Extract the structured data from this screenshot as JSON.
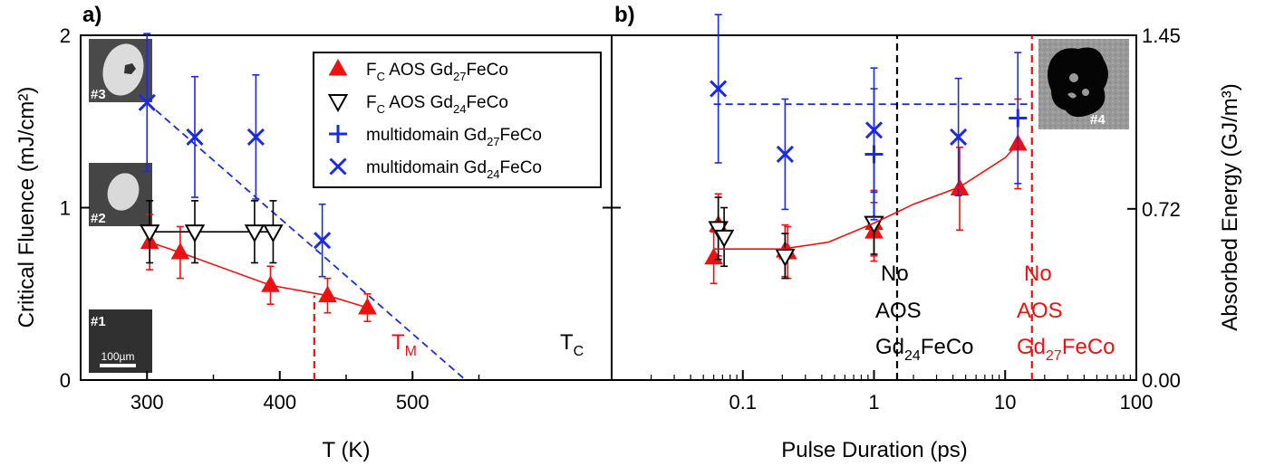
{
  "colors": {
    "red": "#ee1111",
    "blue": "#1a2be0",
    "black": "#000000",
    "insetGray": "#9a9a9a",
    "insetDark": "#2b2b2b"
  },
  "panels": {
    "a": {
      "label": "a)",
      "xlabel": "T (K)",
      "ylabel": "Critical Fluence (mJ/cm²)"
    },
    "b": {
      "label": "b)",
      "xlabel": "Pulse Duration (ps)",
      "ylabel2": "Absorbed Energy (GJ/m³)"
    }
  },
  "insets": {
    "i1": "#1",
    "i2": "#2",
    "i3": "#3",
    "i4": "#4",
    "scalebar": "100µm"
  },
  "legend": [
    {
      "pre": "F",
      "sub1": "C",
      "mid": " AOS Gd",
      "sub2": "27",
      "post": "FeCo",
      "marker": "tri-up",
      "color": "red"
    },
    {
      "pre": "F",
      "sub1": "C",
      "mid": " AOS Gd",
      "sub2": "24",
      "post": "FeCo",
      "marker": "tri-down",
      "color": "black"
    },
    {
      "pre": "",
      "sub1": "",
      "mid": "multidomain Gd",
      "sub2": "27",
      "post": "FeCo",
      "marker": "plus",
      "color": "blue"
    },
    {
      "pre": "",
      "sub1": "",
      "mid": "multidomain Gd",
      "sub2": "24",
      "post": "FeCo",
      "marker": "cross",
      "color": "blue"
    }
  ],
  "annotations": {
    "TM": {
      "main": "T",
      "sub": "M"
    },
    "TC": {
      "main": "T",
      "sub": "C"
    },
    "noAOS24": {
      "l1": "No",
      "l2": "AOS",
      "l3a": "Gd",
      "l3sub": "24",
      "l3b": "FeCo"
    },
    "noAOS27": {
      "l1": "No",
      "l2": "AOS",
      "l3a": "Gd",
      "l3sub": "27",
      "l3b": "FeCo"
    }
  },
  "chart_data": [
    {
      "type": "scatter",
      "panel": "a",
      "xlabel": "T (K)",
      "ylabel": "Critical Fluence (mJ/cm²)",
      "xlim": [
        250,
        650
      ],
      "ylim": [
        0,
        2
      ],
      "xticks": [
        300,
        400,
        500
      ],
      "yticks": [
        0,
        1,
        2
      ],
      "series": [
        {
          "name": "F_C AOS Gd27FeCo",
          "marker": "tri-up",
          "color": "red",
          "connected": true,
          "x": [
            302,
            325,
            393,
            436,
            466
          ],
          "y": [
            0.8,
            0.74,
            0.55,
            0.49,
            0.42
          ],
          "err": [
            0.16,
            0.15,
            0.11,
            0.1,
            0.08
          ]
        },
        {
          "name": "F_C AOS Gd24FeCo",
          "marker": "tri-down",
          "color": "black",
          "connected": true,
          "x": [
            302,
            336,
            381,
            395
          ],
          "y": [
            0.86,
            0.86,
            0.86,
            0.86
          ],
          "err": [
            0.18,
            0.18,
            0.18,
            0.18
          ]
        },
        {
          "name": "multidomain Gd24FeCo",
          "marker": "cross",
          "color": "blue",
          "connected": false,
          "x": [
            300,
            336,
            382,
            432
          ],
          "y": [
            1.61,
            1.41,
            1.41,
            0.81
          ],
          "err": [
            0.4,
            0.35,
            0.36,
            0.21
          ]
        }
      ],
      "guides": [
        {
          "type": "line",
          "style": "dashed",
          "color": "blue",
          "x": [
            300,
            540
          ],
          "y": [
            1.61,
            0.0
          ]
        },
        {
          "type": "vline",
          "style": "dashed",
          "color": "red",
          "x": 426,
          "y": [
            0,
            0.49
          ]
        }
      ]
    },
    {
      "type": "scatter",
      "panel": "b",
      "xscale": "log",
      "xlabel": "Pulse Duration (ps)",
      "ylabel": "Absorbed Energy (GJ/m³)",
      "xlim": [
        0.01,
        100
      ],
      "ylim": [
        0,
        2
      ],
      "xticks": [
        0.1,
        1,
        10,
        100
      ],
      "y2lim": [
        0,
        1.45
      ],
      "y2ticks": [
        0.0,
        0.72,
        1.45
      ],
      "series": [
        {
          "name": "F_C AOS Gd27FeCo",
          "marker": "tri-up",
          "color": "red",
          "x": [
            0.06,
            0.065,
            0.21,
            0.22,
            1.0,
            1.0,
            4.5,
            12.5
          ],
          "y": [
            0.71,
            0.9,
            0.75,
            0.74,
            0.86,
            0.91,
            1.11,
            1.37
          ],
          "err": [
            0.15,
            0.18,
            0.15,
            0.15,
            0.17,
            0.19,
            0.24,
            0.26
          ]
        },
        {
          "name": "F_C AOS Gd24FeCo",
          "marker": "tri-down",
          "color": "black",
          "x": [
            0.065,
            0.072,
            0.21,
            1.0
          ],
          "y": [
            0.88,
            0.83,
            0.72,
            0.91
          ],
          "err": [
            0.18,
            0.17,
            0.13,
            0.18
          ]
        },
        {
          "name": "multidomain Gd27FeCo",
          "marker": "plus",
          "color": "blue",
          "x": [
            1.0,
            12.5
          ],
          "y": [
            1.31,
            1.52
          ],
          "err": [
            0.38,
            0.38
          ]
        },
        {
          "name": "multidomain Gd24FeCo",
          "marker": "cross",
          "color": "blue",
          "x": [
            0.065,
            0.21,
            1.0,
            4.4
          ],
          "y": [
            1.69,
            1.31,
            1.45,
            1.41
          ],
          "err": [
            0.43,
            0.32,
            0.36,
            0.34
          ]
        },
        {
          "name": "fit",
          "marker": "none",
          "color": "red",
          "connected": true,
          "x": [
            0.06,
            0.1,
            0.2,
            0.45,
            1.0,
            2.0,
            4.5,
            10.0,
            12.5
          ],
          "y": [
            0.76,
            0.76,
            0.76,
            0.8,
            0.91,
            1.02,
            1.12,
            1.29,
            1.37
          ]
        }
      ],
      "guides": [
        {
          "type": "hline",
          "style": "dashed",
          "color": "blue",
          "x": [
            0.06,
            15
          ],
          "y": 1.6
        },
        {
          "type": "vline",
          "style": "dashed",
          "color": "black",
          "x": 1.5,
          "y": [
            0,
            2
          ]
        },
        {
          "type": "vline",
          "style": "dashed",
          "color": "red",
          "x": 16,
          "y": [
            0,
            2
          ]
        }
      ]
    }
  ]
}
